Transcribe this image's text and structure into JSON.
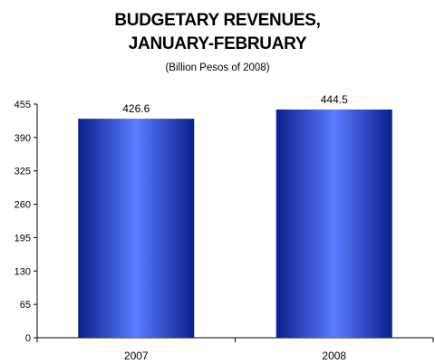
{
  "chart_data": {
    "type": "bar",
    "title_lines": [
      "BUDGETARY REVENUES,",
      "JANUARY-FEBRUARY"
    ],
    "subtitle": "(Billion Pesos of 2008)",
    "categories": [
      "2007",
      "2008"
    ],
    "values": [
      426.6,
      444.5
    ],
    "data_labels": [
      "426.6",
      "444.5"
    ],
    "y_ticks": [
      0,
      65,
      130,
      195,
      260,
      325,
      390,
      455
    ],
    "ylim": [
      0,
      455
    ],
    "xlabel": "",
    "ylabel": "",
    "grid": false,
    "legend": "none",
    "bar_color_center": "#5a7cff",
    "bar_color_edge": "#0a1f8c"
  }
}
